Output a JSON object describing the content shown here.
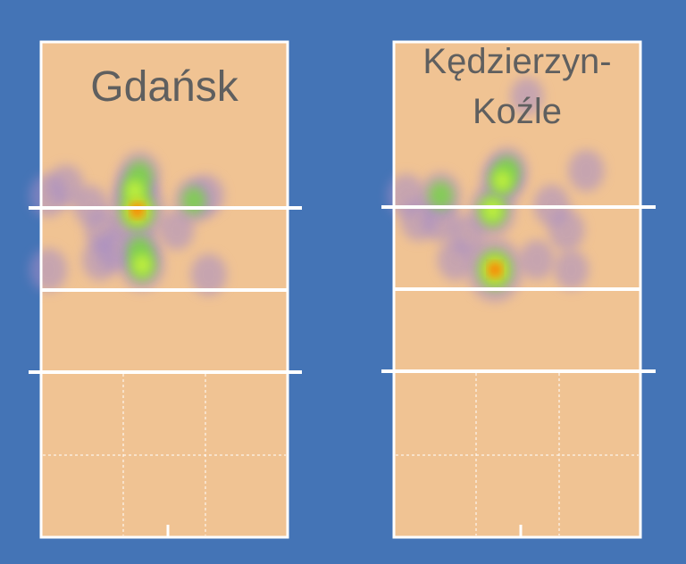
{
  "colors": {
    "background": "#4474b6",
    "court": "#f0c393",
    "lines": "#ffffff",
    "title": "#5f5f5f"
  },
  "chart_data": [
    {
      "type": "heatmap",
      "title_lines": [
        "Gdańsk"
      ],
      "hotspots": [
        {
          "x": 0.39,
          "y": 0.34,
          "weight": 1.0
        },
        {
          "x": 0.38,
          "y": 0.3,
          "weight": 0.55
        },
        {
          "x": 0.4,
          "y": 0.27,
          "weight": 0.5
        },
        {
          "x": 0.41,
          "y": 0.45,
          "weight": 0.6
        },
        {
          "x": 0.4,
          "y": 0.42,
          "weight": 0.45
        },
        {
          "x": 0.62,
          "y": 0.32,
          "weight": 0.4
        },
        {
          "x": 0.67,
          "y": 0.31,
          "weight": 0.3
        },
        {
          "x": 0.25,
          "y": 0.38,
          "weight": 0.3
        },
        {
          "x": 0.24,
          "y": 0.44,
          "weight": 0.3
        },
        {
          "x": 0.3,
          "y": 0.42,
          "weight": 0.35
        },
        {
          "x": 0.1,
          "y": 0.29,
          "weight": 0.3
        },
        {
          "x": 0.03,
          "y": 0.31,
          "weight": 0.35
        },
        {
          "x": 0.03,
          "y": 0.46,
          "weight": 0.35
        },
        {
          "x": 0.2,
          "y": 0.33,
          "weight": 0.25
        },
        {
          "x": 0.68,
          "y": 0.47,
          "weight": 0.3
        },
        {
          "x": 0.55,
          "y": 0.38,
          "weight": 0.25
        }
      ]
    },
    {
      "type": "heatmap",
      "title_lines": [
        "Kędzierzyn-",
        "Koźle"
      ],
      "hotspots": [
        {
          "x": 0.41,
          "y": 0.46,
          "weight": 1.0
        },
        {
          "x": 0.4,
          "y": 0.34,
          "weight": 0.65
        },
        {
          "x": 0.44,
          "y": 0.28,
          "weight": 0.55
        },
        {
          "x": 0.46,
          "y": 0.26,
          "weight": 0.45
        },
        {
          "x": 0.19,
          "y": 0.31,
          "weight": 0.45
        },
        {
          "x": 0.19,
          "y": 0.36,
          "weight": 0.35
        },
        {
          "x": 0.05,
          "y": 0.31,
          "weight": 0.35
        },
        {
          "x": 0.1,
          "y": 0.36,
          "weight": 0.3
        },
        {
          "x": 0.25,
          "y": 0.44,
          "weight": 0.3
        },
        {
          "x": 0.3,
          "y": 0.39,
          "weight": 0.3
        },
        {
          "x": 0.64,
          "y": 0.33,
          "weight": 0.3
        },
        {
          "x": 0.7,
          "y": 0.38,
          "weight": 0.3
        },
        {
          "x": 0.78,
          "y": 0.26,
          "weight": 0.3
        },
        {
          "x": 0.72,
          "y": 0.46,
          "weight": 0.25
        },
        {
          "x": 0.54,
          "y": 0.11,
          "weight": 0.2
        },
        {
          "x": 0.58,
          "y": 0.44,
          "weight": 0.25
        }
      ]
    }
  ]
}
